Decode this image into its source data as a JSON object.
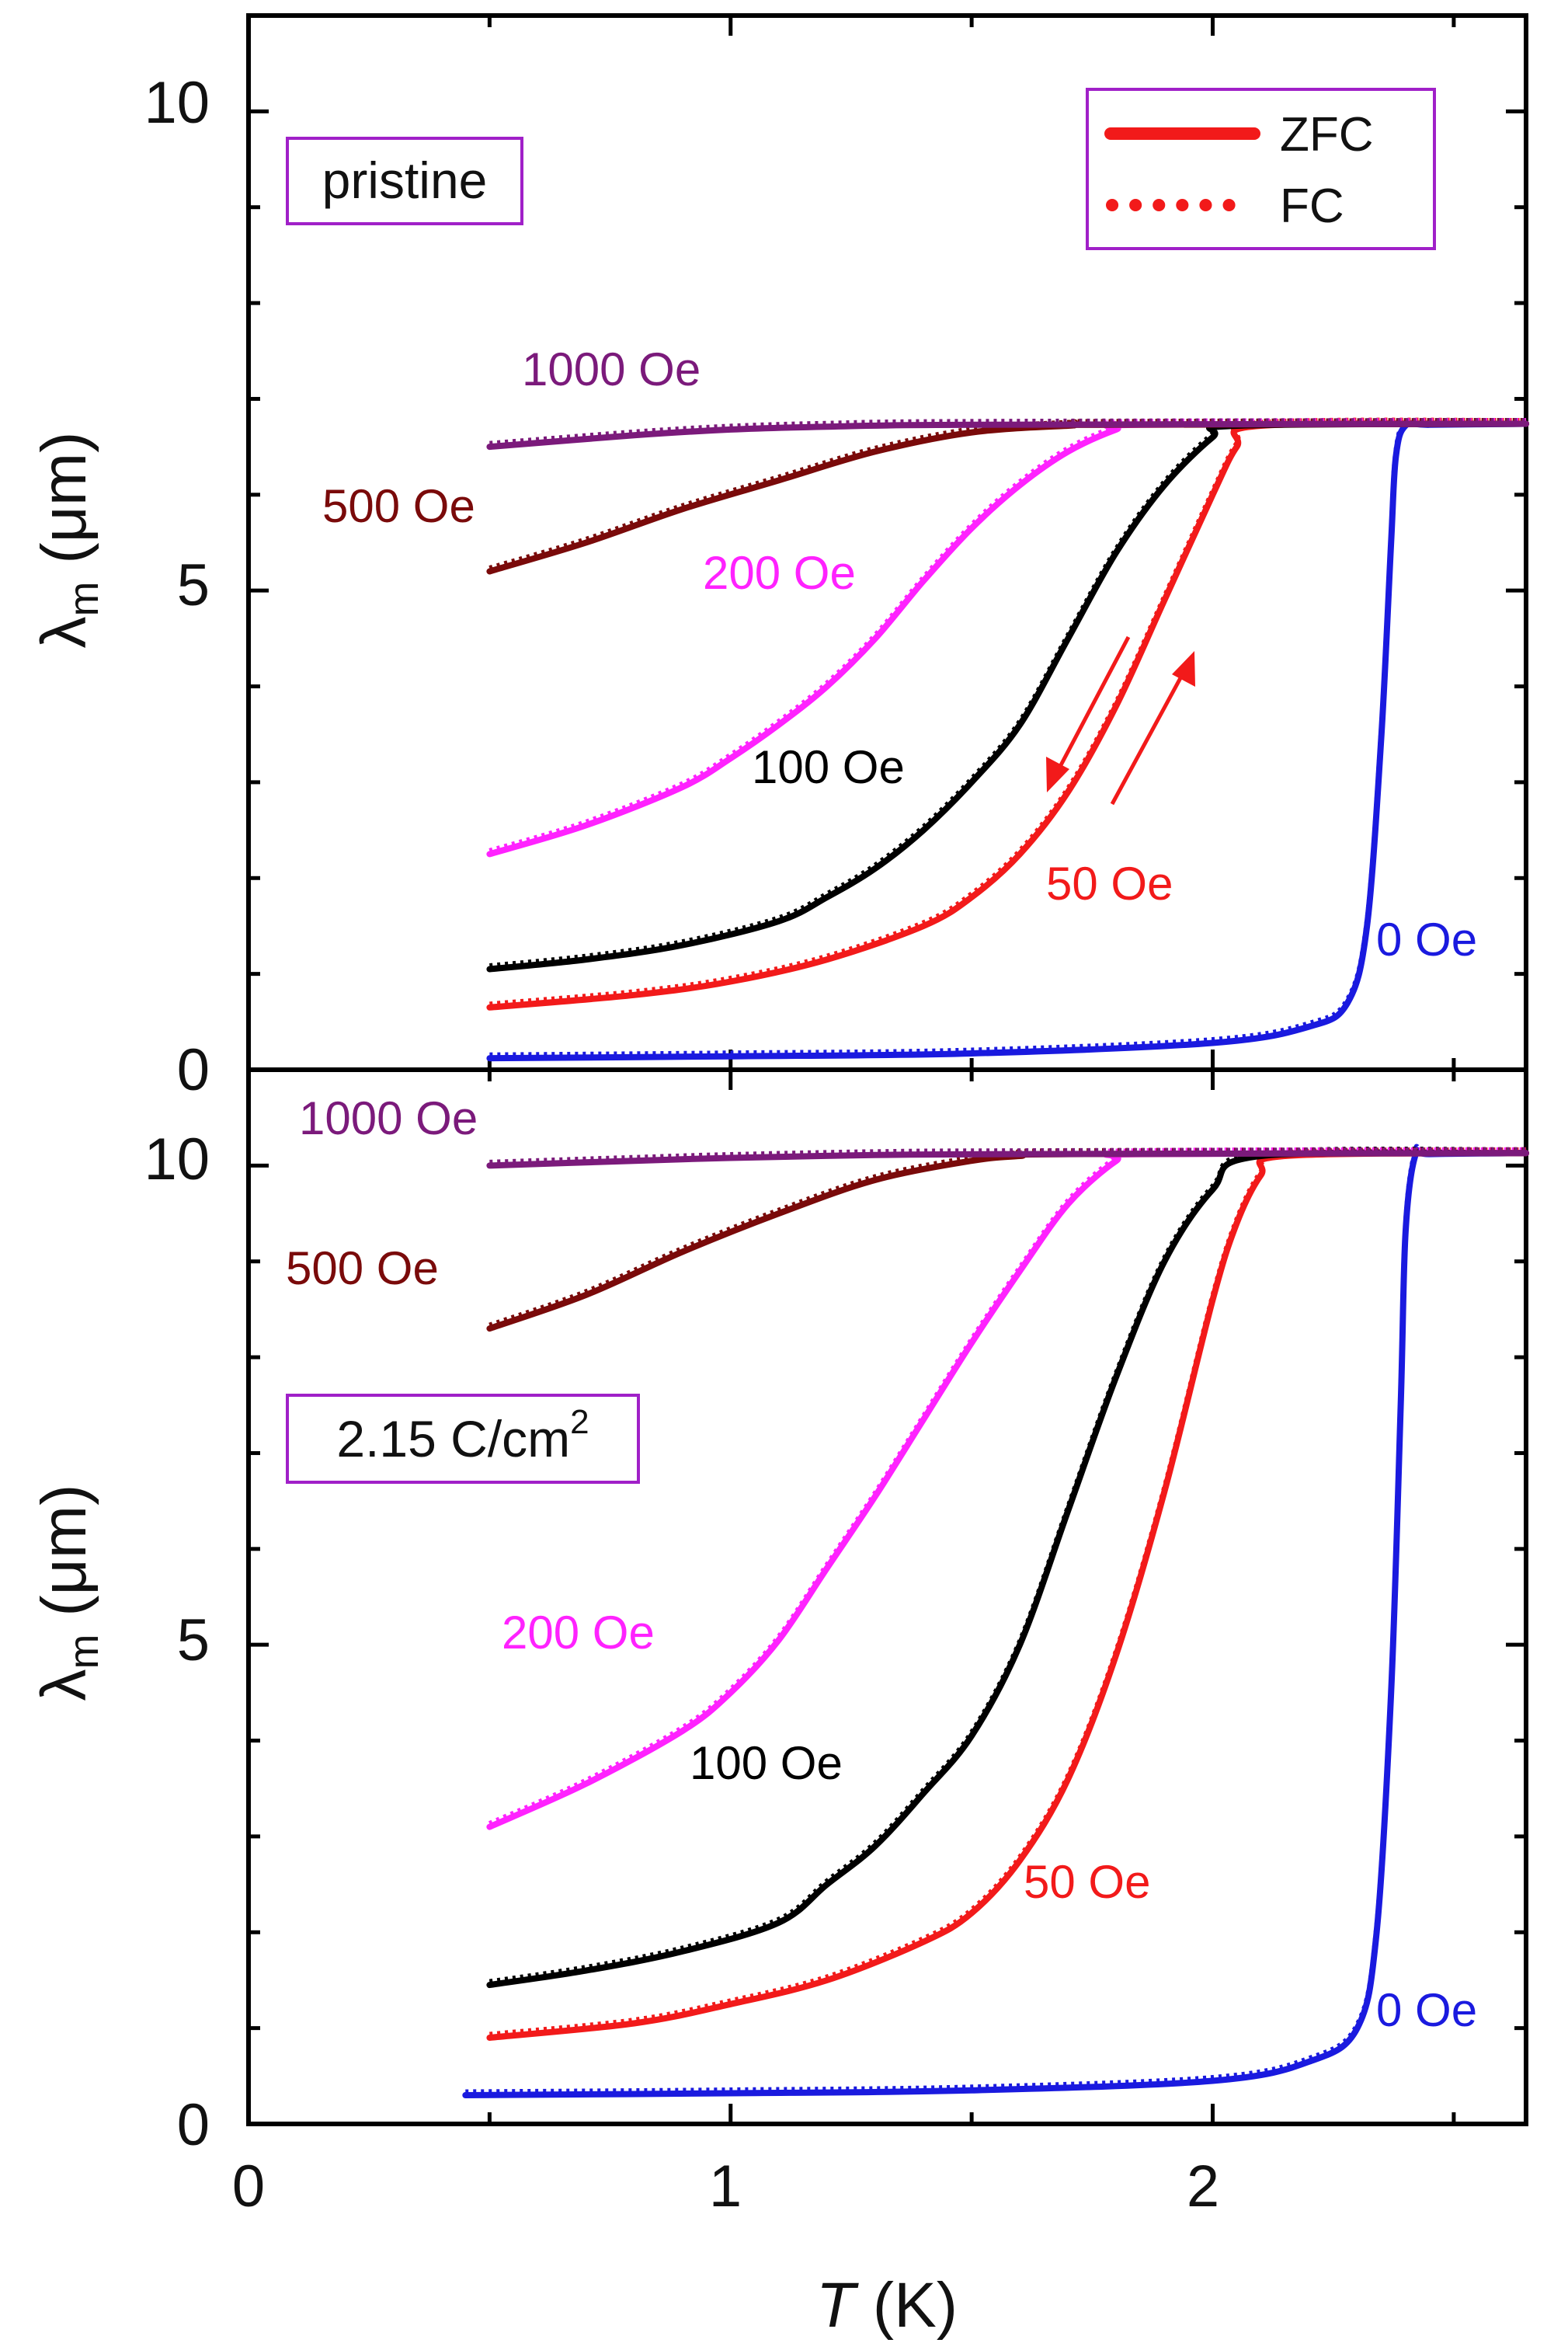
{
  "colors": {
    "0 Oe": "#1a1adf",
    "50 Oe": "#f21a1a",
    "100 Oe": "#000000",
    "200 Oe": "#ff22ff",
    "500 Oe": "#7a0a0a",
    "1000 Oe": "#7b1a7b",
    "frame": "#000000",
    "box": "#a020c8"
  },
  "legend": {
    "zfc": "ZFC",
    "fc": "FC"
  },
  "axes": {
    "x_label_italic": "T",
    "x_label_rest": " (K)",
    "y_label_symbol": "λ",
    "y_label_sub": "m",
    "y_label_rest": " (μm)",
    "x_ticks": [
      "0",
      "1",
      "2"
    ],
    "y_ticks": [
      "0",
      "5",
      "10"
    ]
  },
  "chart_data": [
    {
      "type": "line",
      "panel": "top",
      "label": "pristine",
      "xlabel": "T (K)",
      "ylabel": "λm (μm)",
      "xlim": [
        0,
        2.65
      ],
      "ylim": [
        0,
        11
      ],
      "series": [
        {
          "name": "0 Oe",
          "label": "0 Oe",
          "x": [
            0.5,
            1.0,
            1.5,
            2.0,
            2.2,
            2.28,
            2.32,
            2.35,
            2.37,
            2.38,
            2.4,
            2.45,
            2.65
          ],
          "y": [
            0.12,
            0.14,
            0.17,
            0.28,
            0.45,
            0.7,
            1.5,
            3.5,
            5.5,
            6.4,
            6.72,
            6.73,
            6.74
          ]
        },
        {
          "name": "50 Oe",
          "label": "50 Oe",
          "x": [
            0.5,
            0.8,
            1.0,
            1.2,
            1.4,
            1.5,
            1.6,
            1.7,
            1.8,
            1.9,
            2.0,
            2.05,
            2.1,
            2.65
          ],
          "y": [
            0.65,
            0.78,
            0.92,
            1.15,
            1.5,
            1.8,
            2.25,
            2.9,
            3.8,
            4.9,
            6.0,
            6.5,
            6.72,
            6.74
          ]
        },
        {
          "name": "100 Oe",
          "label": "100 Oe",
          "x": [
            0.5,
            0.7,
            0.9,
            1.1,
            1.2,
            1.3,
            1.4,
            1.5,
            1.6,
            1.7,
            1.8,
            1.9,
            2.0,
            2.05,
            2.65
          ],
          "y": [
            1.05,
            1.15,
            1.3,
            1.55,
            1.8,
            2.1,
            2.5,
            3.0,
            3.6,
            4.5,
            5.4,
            6.1,
            6.6,
            6.72,
            6.74
          ]
        },
        {
          "name": "200 Oe",
          "label": "200 Oe",
          "x": [
            0.5,
            0.7,
            0.9,
            1.0,
            1.1,
            1.2,
            1.3,
            1.4,
            1.5,
            1.6,
            1.7,
            1.8,
            1.85,
            2.65
          ],
          "y": [
            2.25,
            2.55,
            2.95,
            3.25,
            3.6,
            4.0,
            4.5,
            5.1,
            5.65,
            6.1,
            6.45,
            6.68,
            6.73,
            6.74
          ]
        },
        {
          "name": "500 Oe",
          "label": "500 Oe",
          "x": [
            0.5,
            0.7,
            0.9,
            1.1,
            1.3,
            1.5,
            1.7,
            1.8,
            2.65
          ],
          "y": [
            5.2,
            5.5,
            5.85,
            6.15,
            6.45,
            6.65,
            6.72,
            6.73,
            6.74
          ]
        },
        {
          "name": "1000 Oe",
          "label": "1000 Oe",
          "x": [
            0.5,
            0.8,
            1.0,
            1.2,
            1.5,
            2.65
          ],
          "y": [
            6.5,
            6.62,
            6.68,
            6.71,
            6.73,
            6.74
          ]
        }
      ]
    },
    {
      "type": "line",
      "panel": "bottom",
      "label_main": "2.15 C/cm",
      "label_sup": "2",
      "xlabel": "T (K)",
      "ylabel": "λm (μm)",
      "xlim": [
        0,
        2.65
      ],
      "ylim": [
        0,
        11
      ],
      "series": [
        {
          "name": "0 Oe",
          "label": "0 Oe",
          "x": [
            0.45,
            1.0,
            1.5,
            2.0,
            2.2,
            2.3,
            2.34,
            2.37,
            2.39,
            2.4,
            2.42,
            2.45,
            2.65
          ],
          "y": [
            0.3,
            0.32,
            0.35,
            0.45,
            0.65,
            1.0,
            2.0,
            4.5,
            7.5,
            9.3,
            10.1,
            10.12,
            10.13
          ]
        },
        {
          "name": "50 Oe",
          "label": "50 Oe",
          "x": [
            0.5,
            0.8,
            1.0,
            1.2,
            1.4,
            1.5,
            1.6,
            1.7,
            1.8,
            1.9,
            2.0,
            2.05,
            2.1,
            2.15,
            2.65
          ],
          "y": [
            0.9,
            1.05,
            1.25,
            1.5,
            1.9,
            2.2,
            2.75,
            3.6,
            4.9,
            6.6,
            8.6,
            9.4,
            9.9,
            10.1,
            10.13
          ]
        },
        {
          "name": "100 Oe",
          "label": "100 Oe",
          "x": [
            0.5,
            0.7,
            0.9,
            1.1,
            1.2,
            1.3,
            1.4,
            1.5,
            1.6,
            1.7,
            1.8,
            1.9,
            2.0,
            2.1,
            2.65
          ],
          "y": [
            1.45,
            1.6,
            1.8,
            2.1,
            2.5,
            2.9,
            3.45,
            4.05,
            5.0,
            6.4,
            7.8,
            9.0,
            9.75,
            10.1,
            10.13
          ]
        },
        {
          "name": "200 Oe",
          "label": "200 Oe",
          "x": [
            0.5,
            0.7,
            0.9,
            1.0,
            1.1,
            1.2,
            1.3,
            1.4,
            1.5,
            1.6,
            1.7,
            1.8,
            1.85,
            2.65
          ],
          "y": [
            3.1,
            3.55,
            4.1,
            4.5,
            5.05,
            5.8,
            6.55,
            7.35,
            8.15,
            8.9,
            9.6,
            10.05,
            10.12,
            10.13
          ]
        },
        {
          "name": "500 Oe",
          "label": "500 Oe",
          "x": [
            0.5,
            0.7,
            0.9,
            1.1,
            1.3,
            1.5,
            1.6,
            1.7,
            2.65
          ],
          "y": [
            8.3,
            8.65,
            9.1,
            9.5,
            9.85,
            10.05,
            10.1,
            10.12,
            10.13
          ]
        },
        {
          "name": "1000 Oe",
          "label": "1000 Oe",
          "x": [
            0.5,
            0.8,
            1.0,
            1.3,
            1.6,
            2.65
          ],
          "y": [
            10.0,
            10.05,
            10.08,
            10.11,
            10.12,
            10.13
          ]
        }
      ]
    }
  ]
}
